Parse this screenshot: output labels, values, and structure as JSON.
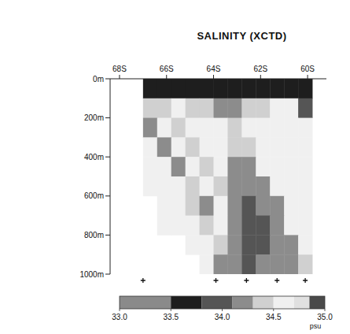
{
  "chart_data": {
    "type": "heatmap",
    "title": "SALINITY (XCTD)",
    "x": [
      -66.7,
      -66.1,
      -65.5,
      -64.9,
      -64.3,
      -63.7,
      -63.1,
      -62.5,
      -61.9,
      -61.3,
      -60.7,
      -60.1
    ],
    "y": [
      50,
      150,
      250,
      350,
      450,
      550,
      650,
      750,
      850,
      950
    ],
    "values": [
      [
        33.7,
        33.7,
        33.7,
        33.7,
        33.7,
        33.7,
        33.7,
        33.7,
        33.7,
        33.7,
        33.7,
        33.7
      ],
      [
        34.4,
        34.4,
        34.5,
        34.4,
        34.3,
        34.2,
        34.2,
        34.3,
        34.4,
        34.5,
        34.5,
        33.9
      ],
      [
        34.2,
        34.5,
        34.4,
        34.6,
        34.5,
        34.6,
        34.4,
        34.5,
        34.5,
        34.6,
        34.6,
        34.6
      ],
      [
        34.5,
        34.2,
        34.6,
        34.4,
        34.6,
        34.5,
        34.3,
        34.4,
        34.6,
        34.5,
        34.6,
        34.6
      ],
      [
        34.6,
        34.5,
        34.2,
        34.6,
        34.4,
        34.6,
        34.2,
        34.2,
        34.5,
        34.6,
        34.6,
        34.5
      ],
      [
        34.6,
        34.6,
        34.5,
        34.3,
        34.6,
        34.4,
        34.2,
        34.1,
        34.2,
        34.5,
        34.6,
        34.6
      ],
      [
        null,
        34.6,
        34.6,
        34.4,
        34.2,
        34.6,
        34.2,
        34.0,
        34.1,
        34.2,
        34.6,
        34.6
      ],
      [
        null,
        34.6,
        34.6,
        34.6,
        34.3,
        34.5,
        34.1,
        34.0,
        34.0,
        34.1,
        34.5,
        34.6
      ],
      [
        null,
        null,
        null,
        34.6,
        34.6,
        34.3,
        34.1,
        34.0,
        34.0,
        34.1,
        34.2,
        34.6
      ],
      [
        null,
        null,
        null,
        null,
        34.6,
        34.2,
        34.1,
        34.0,
        34.1,
        34.1,
        34.2,
        34.3
      ]
    ],
    "xlim": [
      -68.4,
      -59.2
    ],
    "xticks": [
      {
        "value": -68,
        "label": "68S"
      },
      {
        "value": -66,
        "label": "66S"
      },
      {
        "value": -64,
        "label": "64S"
      },
      {
        "value": -62,
        "label": "62S"
      },
      {
        "value": -60,
        "label": "60S"
      }
    ],
    "ylim": [
      0,
      1000
    ],
    "yticks": [
      {
        "value": 0,
        "label": "0m"
      },
      {
        "value": 200,
        "label": "200m"
      },
      {
        "value": 400,
        "label": "400m"
      },
      {
        "value": 600,
        "label": "600m"
      },
      {
        "value": 800,
        "label": "800m"
      },
      {
        "value": 1000,
        "label": "1000m"
      }
    ],
    "stations": [
      -67.0,
      -63.9,
      -62.6,
      -61.3,
      -60.1
    ],
    "colorbar": {
      "range": [
        33.0,
        35.0
      ],
      "ticks": [
        {
          "value": 33.0,
          "label": "33.0"
        },
        {
          "value": 33.5,
          "label": "33.5"
        },
        {
          "value": 34.0,
          "label": "34.0"
        },
        {
          "value": 34.5,
          "label": "34.5"
        },
        {
          "value": 35.0,
          "label": "35.0"
        }
      ],
      "unit": "psu",
      "bins": [
        33.0,
        33.5,
        33.8,
        34.1,
        34.3,
        34.5,
        34.7,
        34.85,
        35.0
      ],
      "colors": [
        "#8a8a8a",
        "#1e1e1e",
        "#555555",
        "#8c8c8c",
        "#d0d0d0",
        "#f0f0f0",
        "#e0e0e0",
        "#4a4a4a"
      ]
    }
  }
}
